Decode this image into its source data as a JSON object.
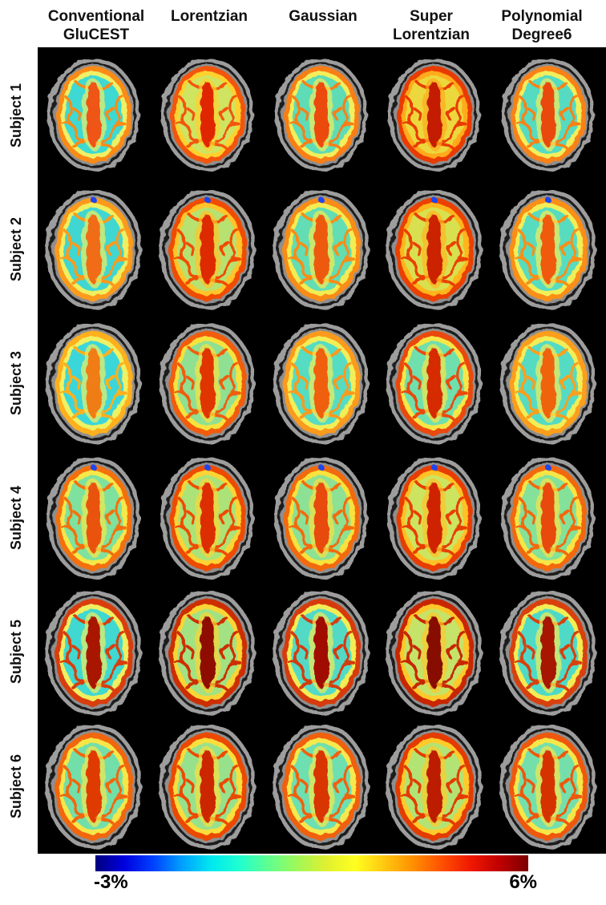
{
  "columns": [
    {
      "line1": "Conventional",
      "line2": "GluCEST"
    },
    {
      "line1": "Lorentzian",
      "line2": ""
    },
    {
      "line1": "Gaussian",
      "line2": ""
    },
    {
      "line1": "Super",
      "line2": "Lorentzian"
    },
    {
      "line1": "Polynomial",
      "line2": "Degree6"
    }
  ],
  "subjects": [
    {
      "label": "Subject 1",
      "top_spot": false,
      "shape": {
        "sx": 0.96,
        "sy": 0.93
      },
      "maps": [
        {
          "method": "Conventional GluCEST",
          "inner": "#3ed9d2",
          "ring": "#eef066",
          "cortex": "#fb8a16",
          "stripe": "#ee5414"
        },
        {
          "method": "Lorentzian",
          "inner": "#cfe461",
          "ring": "#ffd12e",
          "cortex": "#f35408",
          "stripe": "#e02603"
        },
        {
          "method": "Gaussian",
          "inner": "#5ddcb6",
          "ring": "#f2ee5c",
          "cortex": "#f97e12",
          "stripe": "#ec4a0c"
        },
        {
          "method": "Super Lorentzian",
          "inner": "#ecd83e",
          "ring": "#ffab1c",
          "cortex": "#e93a04",
          "stripe": "#c31b00"
        },
        {
          "method": "Polynomial Degree6",
          "inner": "#54dbc2",
          "ring": "#f2ee5c",
          "cortex": "#f98116",
          "stripe": "#e94a0e"
        }
      ]
    },
    {
      "label": "Subject 2",
      "top_spot": true,
      "shape": {
        "sx": 1.0,
        "sy": 0.99
      },
      "maps": [
        {
          "method": "Conventional GluCEST",
          "inner": "#41d6d2",
          "ring": "#f0ef5e",
          "cortex": "#fc9a1a",
          "stripe": "#f06c16"
        },
        {
          "method": "Lorentzian",
          "inner": "#b7e170",
          "ring": "#ffc52a",
          "cortex": "#f14c06",
          "stripe": "#dd2a02"
        },
        {
          "method": "Gaussian",
          "inner": "#62ddb4",
          "ring": "#f4ec52",
          "cortex": "#f98c16",
          "stripe": "#ee5a10"
        },
        {
          "method": "Super Lorentzian",
          "inner": "#d8e050",
          "ring": "#ffb51f",
          "cortex": "#ea4004",
          "stripe": "#cb2000"
        },
        {
          "method": "Polynomial Degree6",
          "inner": "#58dcc0",
          "ring": "#f2ee58",
          "cortex": "#fa8e18",
          "stripe": "#ef5a0e"
        }
      ]
    },
    {
      "label": "Subject 3",
      "top_spot": false,
      "shape": {
        "sx": 0.99,
        "sy": 1.0
      },
      "maps": [
        {
          "method": "Conventional GluCEST",
          "inner": "#3bd6da",
          "ring": "#eff163",
          "cortex": "#ffb01e",
          "stripe": "#f07c18"
        },
        {
          "method": "Lorentzian",
          "inner": "#8fe093",
          "ring": "#f8e23e",
          "cortex": "#f25c0a",
          "stripe": "#e13405"
        },
        {
          "method": "Gaussian",
          "inner": "#57dcc2",
          "ring": "#f2ee58",
          "cortex": "#fb9a1a",
          "stripe": "#ef5e10"
        },
        {
          "method": "Super Lorentzian",
          "inner": "#6fdfae",
          "ring": "#f6e746",
          "cortex": "#ea4a08",
          "stripe": "#d62c02"
        },
        {
          "method": "Polynomial Degree6",
          "inner": "#55dbc4",
          "ring": "#f2ee58",
          "cortex": "#fc9e1c",
          "stripe": "#f06410"
        }
      ]
    },
    {
      "label": "Subject 4",
      "top_spot": true,
      "shape": {
        "sx": 0.97,
        "sy": 1.01
      },
      "maps": [
        {
          "method": "Conventional GluCEST",
          "inner": "#7fe19e",
          "ring": "#f6e848",
          "cortex": "#f4700e",
          "stripe": "#ea520e"
        },
        {
          "method": "Lorentzian",
          "inner": "#abe378",
          "ring": "#fbd534",
          "cortex": "#ee4c06",
          "stripe": "#dc2e02"
        },
        {
          "method": "Gaussian",
          "inner": "#8ce194",
          "ring": "#f8e23e",
          "cortex": "#f36a0c",
          "stripe": "#e84a0a"
        },
        {
          "method": "Super Lorentzian",
          "inner": "#cce460",
          "ring": "#ffc226",
          "cortex": "#e83e04",
          "stripe": "#cf2200"
        },
        {
          "method": "Polynomial Degree6",
          "inner": "#84e19a",
          "ring": "#f7e544",
          "cortex": "#f3680c",
          "stripe": "#e8480a"
        }
      ]
    },
    {
      "label": "Subject 5",
      "top_spot": false,
      "shape": {
        "sx": 1.0,
        "sy": 1.03
      },
      "maps": [
        {
          "method": "Conventional GluCEST",
          "inner": "#3fd8d0",
          "ring": "#f0ef60",
          "cortex": "#d93e08",
          "stripe": "#a81402"
        },
        {
          "method": "Lorentzian",
          "inner": "#a2e282",
          "ring": "#fbd534",
          "cortex": "#cd2e04",
          "stripe": "#8e0c00"
        },
        {
          "method": "Gaussian",
          "inner": "#52dac6",
          "ring": "#f3ed54",
          "cortex": "#d63a08",
          "stripe": "#a01002"
        },
        {
          "method": "Super Lorentzian",
          "inner": "#c4e368",
          "ring": "#ffc82a",
          "cortex": "#c82804",
          "stripe": "#860a00"
        },
        {
          "method": "Polynomial Degree6",
          "inner": "#4fdac8",
          "ring": "#f3ed54",
          "cortex": "#d84010",
          "stripe": "#a61402"
        }
      ]
    },
    {
      "label": "Subject 6",
      "top_spot": false,
      "shape": {
        "sx": 1.0,
        "sy": 1.03
      },
      "maps": [
        {
          "method": "Conventional GluCEST",
          "inner": "#72dfaa",
          "ring": "#f6e74a",
          "cortex": "#f2660c",
          "stripe": "#df3a04"
        },
        {
          "method": "Lorentzian",
          "inner": "#97e18c",
          "ring": "#f9df3c",
          "cortex": "#ec4806",
          "stripe": "#cc2602"
        },
        {
          "method": "Gaussian",
          "inner": "#6edfb0",
          "ring": "#f5e94e",
          "cortex": "#f06010",
          "stripe": "#d83404"
        },
        {
          "method": "Super Lorentzian",
          "inner": "#b2e374",
          "ring": "#fecb2c",
          "cortex": "#e43a02",
          "stripe": "#bc1e00"
        },
        {
          "method": "Polynomial Degree6",
          "inner": "#74dfac",
          "ring": "#f6e74a",
          "cortex": "#ee580c",
          "stripe": "#d63004"
        }
      ]
    }
  ],
  "colorbar": {
    "min_label": "-3%",
    "max_label": "6%",
    "stops": [
      "#00007f",
      "#0000e0",
      "#0040ff",
      "#00a0ff",
      "#00e8f0",
      "#20ffd0",
      "#60ff90",
      "#a0f858",
      "#e0f030",
      "#ffff20",
      "#ffc810",
      "#ff9000",
      "#ff5000",
      "#f01800",
      "#c00000",
      "#7c0000"
    ]
  },
  "panel_background": "#000000"
}
